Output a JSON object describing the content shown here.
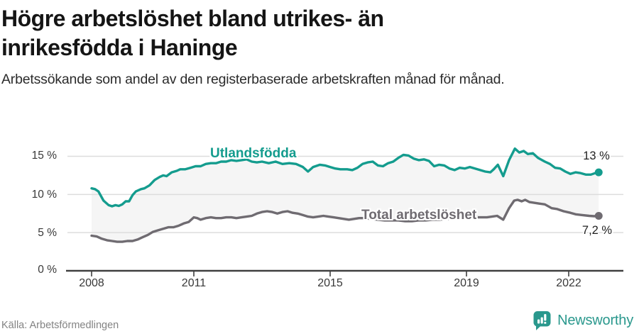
{
  "header": {
    "title_line1": "Högre arbetslöshet bland utrikes- än",
    "title_line2": "inrikesfödda i Haninge",
    "subtitle": "Arbetssökande som andel av den registerbaserade arbetskraften månad för månad."
  },
  "footer": {
    "source": "Källa: Arbetsförmedlingen",
    "brand": "Newsworthy",
    "brand_color": "#2a988d"
  },
  "chart_data": {
    "type": "line",
    "title": "Högre arbetslöshet bland utrikes- än inrikesfödda i Haninge",
    "subtitle": "Arbetssökande som andel av den registerbaserade arbetskraften månad för månad.",
    "xlabel": "",
    "ylabel": "%",
    "grid": true,
    "legend_position": "inline-labels",
    "x_range": [
      2007.25,
      2023.6
    ],
    "y_range": [
      0,
      16.5
    ],
    "x_ticks": [
      {
        "label": "2008",
        "year": 2008
      },
      {
        "label": "2011",
        "year": 2011
      },
      {
        "label": "2015",
        "year": 2015
      },
      {
        "label": "2019",
        "year": 2019
      },
      {
        "label": "2022",
        "year": 2022
      }
    ],
    "y_ticks": [
      {
        "label": "0 %",
        "value": 0
      },
      {
        "label": "5 %",
        "value": 5
      },
      {
        "label": "10 %",
        "value": 10
      },
      {
        "label": "15 %",
        "value": 15
      }
    ],
    "fill_between_color": "#f5f5f5",
    "axis_color": "#404040",
    "gridline_color": "#dddddd",
    "series": [
      {
        "name": "Utlandsfödda",
        "color": "#149c8e",
        "end_label": "13 %",
        "end_value": 12.9,
        "points": [
          [
            2008.0,
            10.8
          ],
          [
            2008.1,
            10.7
          ],
          [
            2008.2,
            10.4
          ],
          [
            2008.35,
            9.2
          ],
          [
            2008.5,
            8.6
          ],
          [
            2008.6,
            8.45
          ],
          [
            2008.7,
            8.6
          ],
          [
            2008.8,
            8.5
          ],
          [
            2008.9,
            8.7
          ],
          [
            2009.0,
            9.1
          ],
          [
            2009.1,
            9.1
          ],
          [
            2009.2,
            9.9
          ],
          [
            2009.3,
            10.4
          ],
          [
            2009.45,
            10.7
          ],
          [
            2009.55,
            10.8
          ],
          [
            2009.7,
            11.2
          ],
          [
            2009.85,
            11.9
          ],
          [
            2010.0,
            12.3
          ],
          [
            2010.1,
            12.5
          ],
          [
            2010.2,
            12.4
          ],
          [
            2010.35,
            12.9
          ],
          [
            2010.5,
            13.1
          ],
          [
            2010.6,
            13.3
          ],
          [
            2010.75,
            13.3
          ],
          [
            2010.9,
            13.5
          ],
          [
            2011.05,
            13.7
          ],
          [
            2011.2,
            13.7
          ],
          [
            2011.35,
            14.0
          ],
          [
            2011.5,
            14.1
          ],
          [
            2011.65,
            14.1
          ],
          [
            2011.8,
            14.3
          ],
          [
            2011.95,
            14.3
          ],
          [
            2012.1,
            14.5
          ],
          [
            2012.25,
            14.4
          ],
          [
            2012.4,
            14.5
          ],
          [
            2012.55,
            14.6
          ],
          [
            2012.7,
            14.3
          ],
          [
            2012.85,
            14.2
          ],
          [
            2013.0,
            14.3
          ],
          [
            2013.2,
            14.1
          ],
          [
            2013.4,
            14.3
          ],
          [
            2013.6,
            14.0
          ],
          [
            2013.8,
            14.1
          ],
          [
            2014.0,
            14.0
          ],
          [
            2014.2,
            13.6
          ],
          [
            2014.35,
            13.0
          ],
          [
            2014.5,
            13.6
          ],
          [
            2014.7,
            13.9
          ],
          [
            2014.85,
            13.8
          ],
          [
            2015.0,
            13.6
          ],
          [
            2015.15,
            13.4
          ],
          [
            2015.3,
            13.3
          ],
          [
            2015.5,
            13.3
          ],
          [
            2015.65,
            13.2
          ],
          [
            2015.8,
            13.5
          ],
          [
            2015.95,
            14.0
          ],
          [
            2016.1,
            14.2
          ],
          [
            2016.25,
            14.3
          ],
          [
            2016.4,
            13.8
          ],
          [
            2016.55,
            13.7
          ],
          [
            2016.7,
            14.1
          ],
          [
            2016.85,
            14.3
          ],
          [
            2017.0,
            14.8
          ],
          [
            2017.15,
            15.2
          ],
          [
            2017.3,
            15.1
          ],
          [
            2017.45,
            14.7
          ],
          [
            2017.6,
            14.5
          ],
          [
            2017.75,
            14.6
          ],
          [
            2017.9,
            14.4
          ],
          [
            2018.05,
            13.7
          ],
          [
            2018.2,
            13.9
          ],
          [
            2018.35,
            13.8
          ],
          [
            2018.5,
            13.4
          ],
          [
            2018.65,
            13.2
          ],
          [
            2018.8,
            13.5
          ],
          [
            2018.95,
            13.4
          ],
          [
            2019.1,
            13.6
          ],
          [
            2019.25,
            13.4
          ],
          [
            2019.4,
            13.2
          ],
          [
            2019.55,
            13.0
          ],
          [
            2019.7,
            12.9
          ],
          [
            2019.8,
            13.3
          ],
          [
            2019.92,
            13.9
          ],
          [
            2020.08,
            12.4
          ],
          [
            2020.25,
            14.5
          ],
          [
            2020.42,
            16.0
          ],
          [
            2020.55,
            15.5
          ],
          [
            2020.68,
            15.7
          ],
          [
            2020.8,
            15.3
          ],
          [
            2020.95,
            15.4
          ],
          [
            2021.1,
            14.8
          ],
          [
            2021.3,
            14.3
          ],
          [
            2021.45,
            14.0
          ],
          [
            2021.6,
            13.5
          ],
          [
            2021.75,
            13.4
          ],
          [
            2021.9,
            13.0
          ],
          [
            2022.05,
            12.7
          ],
          [
            2022.2,
            12.9
          ],
          [
            2022.35,
            12.8
          ],
          [
            2022.5,
            12.6
          ],
          [
            2022.65,
            12.6
          ],
          [
            2022.78,
            12.8
          ],
          [
            2022.88,
            12.9
          ]
        ]
      },
      {
        "name": "Total arbetslöshet",
        "color": "#6f6b71",
        "end_label": "7,2 %",
        "end_value": 7.2,
        "points": [
          [
            2008.0,
            4.6
          ],
          [
            2008.15,
            4.5
          ],
          [
            2008.3,
            4.2
          ],
          [
            2008.45,
            4.0
          ],
          [
            2008.6,
            3.9
          ],
          [
            2008.75,
            3.8
          ],
          [
            2008.9,
            3.8
          ],
          [
            2009.05,
            3.9
          ],
          [
            2009.2,
            3.9
          ],
          [
            2009.35,
            4.1
          ],
          [
            2009.5,
            4.4
          ],
          [
            2009.65,
            4.7
          ],
          [
            2009.8,
            5.1
          ],
          [
            2009.95,
            5.3
          ],
          [
            2010.1,
            5.5
          ],
          [
            2010.25,
            5.7
          ],
          [
            2010.4,
            5.7
          ],
          [
            2010.55,
            5.9
          ],
          [
            2010.7,
            6.2
          ],
          [
            2010.85,
            6.4
          ],
          [
            2011.0,
            7.0
          ],
          [
            2011.1,
            6.9
          ],
          [
            2011.2,
            6.7
          ],
          [
            2011.35,
            6.9
          ],
          [
            2011.5,
            7.0
          ],
          [
            2011.65,
            6.9
          ],
          [
            2011.8,
            6.9
          ],
          [
            2011.95,
            7.0
          ],
          [
            2012.1,
            7.0
          ],
          [
            2012.25,
            6.9
          ],
          [
            2012.4,
            7.0
          ],
          [
            2012.55,
            7.1
          ],
          [
            2012.7,
            7.2
          ],
          [
            2012.85,
            7.5
          ],
          [
            2013.0,
            7.7
          ],
          [
            2013.15,
            7.8
          ],
          [
            2013.3,
            7.7
          ],
          [
            2013.45,
            7.5
          ],
          [
            2013.6,
            7.7
          ],
          [
            2013.75,
            7.8
          ],
          [
            2013.9,
            7.6
          ],
          [
            2014.05,
            7.5
          ],
          [
            2014.2,
            7.3
          ],
          [
            2014.35,
            7.1
          ],
          [
            2014.5,
            7.0
          ],
          [
            2014.65,
            7.1
          ],
          [
            2014.8,
            7.2
          ],
          [
            2014.95,
            7.1
          ],
          [
            2015.1,
            7.0
          ],
          [
            2015.25,
            6.9
          ],
          [
            2015.4,
            6.8
          ],
          [
            2015.55,
            6.7
          ],
          [
            2015.7,
            6.8
          ],
          [
            2015.85,
            6.9
          ],
          [
            2016.0,
            6.9
          ],
          [
            2016.2,
            6.8
          ],
          [
            2016.4,
            6.7
          ],
          [
            2016.6,
            6.6
          ],
          [
            2016.8,
            6.6
          ],
          [
            2017.0,
            6.6
          ],
          [
            2017.2,
            6.5
          ],
          [
            2017.4,
            6.5
          ],
          [
            2017.6,
            6.6
          ],
          [
            2017.8,
            6.6
          ],
          [
            2018.0,
            6.7
          ],
          [
            2018.2,
            6.7
          ],
          [
            2018.4,
            6.8
          ],
          [
            2018.6,
            6.8
          ],
          [
            2018.8,
            6.9
          ],
          [
            2019.0,
            6.9
          ],
          [
            2019.2,
            7.0
          ],
          [
            2019.4,
            7.0
          ],
          [
            2019.6,
            7.0
          ],
          [
            2019.75,
            7.1
          ],
          [
            2019.9,
            7.2
          ],
          [
            2020.08,
            6.7
          ],
          [
            2020.25,
            8.2
          ],
          [
            2020.4,
            9.2
          ],
          [
            2020.5,
            9.3
          ],
          [
            2020.62,
            9.1
          ],
          [
            2020.72,
            9.3
          ],
          [
            2020.85,
            9.0
          ],
          [
            2021.0,
            8.9
          ],
          [
            2021.15,
            8.8
          ],
          [
            2021.3,
            8.7
          ],
          [
            2021.5,
            8.2
          ],
          [
            2021.65,
            8.1
          ],
          [
            2021.85,
            7.8
          ],
          [
            2022.05,
            7.6
          ],
          [
            2022.2,
            7.4
          ],
          [
            2022.4,
            7.3
          ],
          [
            2022.6,
            7.2
          ],
          [
            2022.75,
            7.15
          ],
          [
            2022.88,
            7.2
          ]
        ]
      }
    ]
  }
}
